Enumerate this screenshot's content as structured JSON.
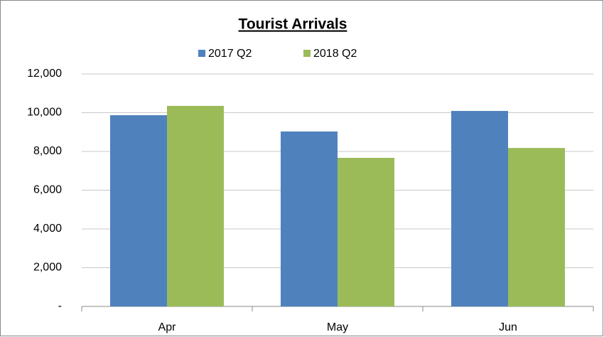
{
  "chart_data": {
    "type": "bar",
    "title": "Tourist Arrivals",
    "categories": [
      "Apr",
      "May",
      "Jun"
    ],
    "series": [
      {
        "name": "2017 Q2",
        "color": "#4f81bd",
        "values": [
          9870,
          9030,
          10090
        ]
      },
      {
        "name": "2018 Q2",
        "color": "#9bbb59",
        "values": [
          10350,
          7670,
          8180
        ]
      }
    ],
    "ylim": [
      0,
      12000
    ],
    "yticks": [
      {
        "value": 0,
        "label": "-"
      },
      {
        "value": 2000,
        "label": "2,000"
      },
      {
        "value": 4000,
        "label": "4,000"
      },
      {
        "value": 6000,
        "label": "6,000"
      },
      {
        "value": 8000,
        "label": "8,000"
      },
      {
        "value": 10000,
        "label": "10,000"
      },
      {
        "value": 12000,
        "label": "12,000"
      }
    ],
    "grid": true,
    "legend": "top"
  }
}
